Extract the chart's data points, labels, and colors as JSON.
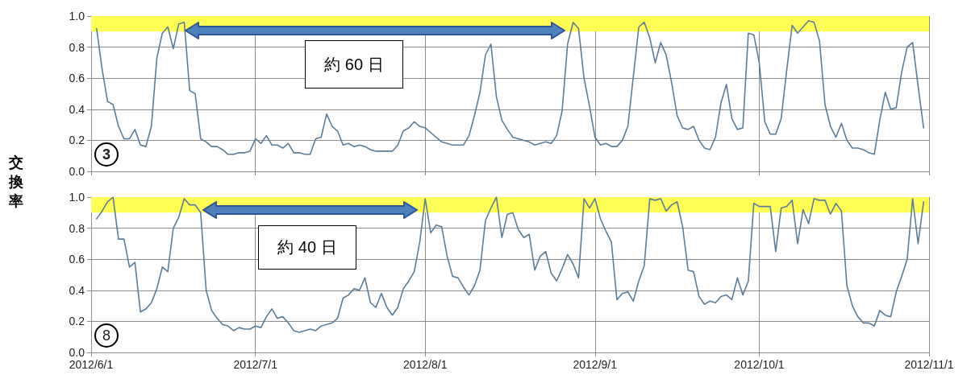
{
  "chart_data": [
    {
      "type": "line",
      "title": "3",
      "ylabel": "交換率",
      "annotations": [
        "約 60 日"
      ],
      "tick_labels": "y",
      "grid": true,
      "marker": "none",
      "line_style": "solid",
      "xlim": [
        "2012-06-01",
        "2012-11-01"
      ],
      "xticks": [
        {
          "value": "2012-06-01",
          "label": null
        },
        {
          "value": "2012-07-01",
          "label": null
        },
        {
          "value": "2012-08-01",
          "label": null
        },
        {
          "value": "2012-09-01",
          "label": null
        },
        {
          "value": "2012-10-01",
          "label": null
        },
        {
          "value": "2012-11-01",
          "label": null
        }
      ],
      "ylim": [
        0,
        1
      ],
      "yticks": [
        {
          "value": 0,
          "label": "0.0"
        },
        {
          "value": 0.2,
          "label": "0.2"
        },
        {
          "value": 0.4,
          "label": "0.4"
        },
        {
          "value": 0.6,
          "label": "0.6"
        },
        {
          "value": 0.8,
          "label": "0.8"
        },
        {
          "value": 1,
          "label": "1.0"
        }
      ],
      "bands": [
        {
          "axis": "y",
          "from": 0.9,
          "to": 1,
          "color": "#ffff55"
        }
      ],
      "x": [
        "2012-06-02",
        "2012-06-03",
        "2012-06-04",
        "2012-06-05",
        "2012-06-06",
        "2012-06-07",
        "2012-06-08",
        "2012-06-09",
        "2012-06-10",
        "2012-06-11",
        "2012-06-12",
        "2012-06-13",
        "2012-06-14",
        "2012-06-15",
        "2012-06-16",
        "2012-06-17",
        "2012-06-18",
        "2012-06-19",
        "2012-06-20",
        "2012-06-21",
        "2012-06-22",
        "2012-06-23",
        "2012-06-24",
        "2012-06-25",
        "2012-06-26",
        "2012-06-27",
        "2012-06-28",
        "2012-06-29",
        "2012-06-30",
        "2012-07-01",
        "2012-07-02",
        "2012-07-03",
        "2012-07-04",
        "2012-07-05",
        "2012-07-06",
        "2012-07-07",
        "2012-07-08",
        "2012-07-09",
        "2012-07-10",
        "2012-07-11",
        "2012-07-12",
        "2012-07-13",
        "2012-07-14",
        "2012-07-15",
        "2012-07-16",
        "2012-07-17",
        "2012-07-18",
        "2012-07-19",
        "2012-07-20",
        "2012-07-21",
        "2012-07-22",
        "2012-07-23",
        "2012-07-24",
        "2012-07-25",
        "2012-07-26",
        "2012-07-27",
        "2012-07-28",
        "2012-07-29",
        "2012-07-30",
        "2012-07-31",
        "2012-08-01",
        "2012-08-02",
        "2012-08-03",
        "2012-08-04",
        "2012-08-05",
        "2012-08-06",
        "2012-08-07",
        "2012-08-08",
        "2012-08-09",
        "2012-08-10",
        "2012-08-11",
        "2012-08-12",
        "2012-08-13",
        "2012-08-14",
        "2012-08-15",
        "2012-08-16",
        "2012-08-17",
        "2012-08-18",
        "2012-08-19",
        "2012-08-20",
        "2012-08-21",
        "2012-08-22",
        "2012-08-23",
        "2012-08-24",
        "2012-08-25",
        "2012-08-26",
        "2012-08-27",
        "2012-08-28",
        "2012-08-29",
        "2012-08-30",
        "2012-08-31",
        "2012-09-01",
        "2012-09-02",
        "2012-09-03",
        "2012-09-04",
        "2012-09-05",
        "2012-09-06",
        "2012-09-07",
        "2012-09-08",
        "2012-09-09",
        "2012-09-10",
        "2012-09-11",
        "2012-09-12",
        "2012-09-13",
        "2012-09-14",
        "2012-09-15",
        "2012-09-16",
        "2012-09-17",
        "2012-09-18",
        "2012-09-19",
        "2012-09-20",
        "2012-09-21",
        "2012-09-22",
        "2012-09-23",
        "2012-09-24",
        "2012-09-25",
        "2012-09-26",
        "2012-09-27",
        "2012-09-28",
        "2012-09-29",
        "2012-09-30",
        "2012-10-01",
        "2012-10-02",
        "2012-10-03",
        "2012-10-04",
        "2012-10-05",
        "2012-10-06",
        "2012-10-07",
        "2012-10-08",
        "2012-10-09",
        "2012-10-10",
        "2012-10-11",
        "2012-10-12",
        "2012-10-13",
        "2012-10-14",
        "2012-10-15",
        "2012-10-16",
        "2012-10-17",
        "2012-10-18",
        "2012-10-19",
        "2012-10-20",
        "2012-10-21",
        "2012-10-22",
        "2012-10-23",
        "2012-10-24",
        "2012-10-25",
        "2012-10-26",
        "2012-10-27",
        "2012-10-28",
        "2012-10-29",
        "2012-10-30",
        "2012-10-31"
      ],
      "series": [
        {
          "color": "#5b7d99",
          "values": [
            0.92,
            0.66,
            0.45,
            0.43,
            0.29,
            0.21,
            0.21,
            0.27,
            0.17,
            0.16,
            0.29,
            0.73,
            0.89,
            0.93,
            0.79,
            0.95,
            0.96,
            0.52,
            0.5,
            0.21,
            0.19,
            0.16,
            0.16,
            0.14,
            0.11,
            0.11,
            0.12,
            0.12,
            0.13,
            0.21,
            0.18,
            0.23,
            0.17,
            0.17,
            0.15,
            0.18,
            0.12,
            0.12,
            0.11,
            0.11,
            0.21,
            0.22,
            0.37,
            0.29,
            0.26,
            0.17,
            0.18,
            0.16,
            0.17,
            0.16,
            0.14,
            0.13,
            0.13,
            0.13,
            0.13,
            0.17,
            0.26,
            0.28,
            0.32,
            0.29,
            0.28,
            0.25,
            0.22,
            0.19,
            0.18,
            0.17,
            0.17,
            0.17,
            0.23,
            0.36,
            0.51,
            0.75,
            0.82,
            0.48,
            0.33,
            0.27,
            0.22,
            0.21,
            0.2,
            0.19,
            0.17,
            0.18,
            0.19,
            0.18,
            0.23,
            0.39,
            0.82,
            0.96,
            0.92,
            0.6,
            0.42,
            0.22,
            0.17,
            0.18,
            0.16,
            0.16,
            0.2,
            0.29,
            0.61,
            0.93,
            0.96,
            0.86,
            0.7,
            0.83,
            0.75,
            0.57,
            0.36,
            0.28,
            0.27,
            0.29,
            0.2,
            0.15,
            0.14,
            0.22,
            0.44,
            0.56,
            0.34,
            0.27,
            0.28,
            0.89,
            0.88,
            0.7,
            0.32,
            0.24,
            0.24,
            0.34,
            0.65,
            0.94,
            0.89,
            0.93,
            0.97,
            0.96,
            0.84,
            0.43,
            0.29,
            0.22,
            0.31,
            0.2,
            0.15,
            0.15,
            0.14,
            0.12,
            0.11,
            0.33,
            0.51,
            0.4,
            0.41,
            0.64,
            0.8,
            0.83,
            0.55,
            0.28
          ]
        }
      ]
    },
    {
      "type": "line",
      "title": "8",
      "annotations": [
        "約 40 日"
      ],
      "grid": true,
      "marker": "none",
      "line_style": "solid",
      "xlim": [
        "2012-06-01",
        "2012-11-01"
      ],
      "xticks": [
        {
          "value": "2012-06-01",
          "label": "2012/6/1"
        },
        {
          "value": "2012-07-01",
          "label": "2012/7/1"
        },
        {
          "value": "2012-08-01",
          "label": "2012/8/1"
        },
        {
          "value": "2012-09-01",
          "label": "2012/9/1"
        },
        {
          "value": "2012-10-01",
          "label": "2012/10/1"
        },
        {
          "value": "2012-11-01",
          "label": "2012/11/1"
        }
      ],
      "ylim": [
        0,
        1
      ],
      "yticks": [
        {
          "value": 0,
          "label": "0.0"
        },
        {
          "value": 0.2,
          "label": "0.2"
        },
        {
          "value": 0.4,
          "label": "0.4"
        },
        {
          "value": 0.6,
          "label": "0.6"
        },
        {
          "value": 0.8,
          "label": "0.8"
        },
        {
          "value": 1,
          "label": "1.0"
        }
      ],
      "bands": [
        {
          "axis": "y",
          "from": 0.9,
          "to": 1,
          "color": "#ffff55"
        }
      ],
      "x": [
        "2012-06-02",
        "2012-06-03",
        "2012-06-04",
        "2012-06-05",
        "2012-06-06",
        "2012-06-07",
        "2012-06-08",
        "2012-06-09",
        "2012-06-10",
        "2012-06-11",
        "2012-06-12",
        "2012-06-13",
        "2012-06-14",
        "2012-06-15",
        "2012-06-16",
        "2012-06-17",
        "2012-06-18",
        "2012-06-19",
        "2012-06-20",
        "2012-06-21",
        "2012-06-22",
        "2012-06-23",
        "2012-06-24",
        "2012-06-25",
        "2012-06-26",
        "2012-06-27",
        "2012-06-28",
        "2012-06-29",
        "2012-06-30",
        "2012-07-01",
        "2012-07-02",
        "2012-07-03",
        "2012-07-04",
        "2012-07-05",
        "2012-07-06",
        "2012-07-07",
        "2012-07-08",
        "2012-07-09",
        "2012-07-10",
        "2012-07-11",
        "2012-07-12",
        "2012-07-13",
        "2012-07-14",
        "2012-07-15",
        "2012-07-16",
        "2012-07-17",
        "2012-07-18",
        "2012-07-19",
        "2012-07-20",
        "2012-07-21",
        "2012-07-22",
        "2012-07-23",
        "2012-07-24",
        "2012-07-25",
        "2012-07-26",
        "2012-07-27",
        "2012-07-28",
        "2012-07-29",
        "2012-07-30",
        "2012-07-31",
        "2012-08-01",
        "2012-08-02",
        "2012-08-03",
        "2012-08-04",
        "2012-08-05",
        "2012-08-06",
        "2012-08-07",
        "2012-08-08",
        "2012-08-09",
        "2012-08-10",
        "2012-08-11",
        "2012-08-12",
        "2012-08-13",
        "2012-08-14",
        "2012-08-15",
        "2012-08-16",
        "2012-08-17",
        "2012-08-18",
        "2012-08-19",
        "2012-08-20",
        "2012-08-21",
        "2012-08-22",
        "2012-08-23",
        "2012-08-24",
        "2012-08-25",
        "2012-08-26",
        "2012-08-27",
        "2012-08-28",
        "2012-08-29",
        "2012-08-30",
        "2012-08-31",
        "2012-09-01",
        "2012-09-02",
        "2012-09-03",
        "2012-09-04",
        "2012-09-05",
        "2012-09-06",
        "2012-09-07",
        "2012-09-08",
        "2012-09-09",
        "2012-09-10",
        "2012-09-11",
        "2012-09-12",
        "2012-09-13",
        "2012-09-14",
        "2012-09-15",
        "2012-09-16",
        "2012-09-17",
        "2012-09-18",
        "2012-09-19",
        "2012-09-20",
        "2012-09-21",
        "2012-09-22",
        "2012-09-23",
        "2012-09-24",
        "2012-09-25",
        "2012-09-26",
        "2012-09-27",
        "2012-09-28",
        "2012-09-29",
        "2012-09-30",
        "2012-10-01",
        "2012-10-02",
        "2012-10-03",
        "2012-10-04",
        "2012-10-05",
        "2012-10-06",
        "2012-10-07",
        "2012-10-08",
        "2012-10-09",
        "2012-10-10",
        "2012-10-11",
        "2012-10-12",
        "2012-10-13",
        "2012-10-14",
        "2012-10-15",
        "2012-10-16",
        "2012-10-17",
        "2012-10-18",
        "2012-10-19",
        "2012-10-20",
        "2012-10-21",
        "2012-10-22",
        "2012-10-23",
        "2012-10-24",
        "2012-10-25",
        "2012-10-26",
        "2012-10-27",
        "2012-10-28",
        "2012-10-29",
        "2012-10-30",
        "2012-10-31"
      ],
      "series": [
        {
          "color": "#5b7d99",
          "values": [
            0.86,
            0.91,
            0.97,
            1.0,
            0.73,
            0.73,
            0.55,
            0.58,
            0.26,
            0.28,
            0.32,
            0.41,
            0.55,
            0.52,
            0.8,
            0.87,
            0.99,
            0.95,
            0.95,
            0.9,
            0.4,
            0.27,
            0.22,
            0.18,
            0.17,
            0.14,
            0.16,
            0.15,
            0.15,
            0.17,
            0.16,
            0.23,
            0.28,
            0.22,
            0.23,
            0.19,
            0.14,
            0.13,
            0.14,
            0.15,
            0.14,
            0.17,
            0.18,
            0.19,
            0.22,
            0.35,
            0.37,
            0.41,
            0.4,
            0.48,
            0.32,
            0.29,
            0.38,
            0.29,
            0.24,
            0.29,
            0.41,
            0.46,
            0.52,
            0.71,
            0.99,
            0.77,
            0.82,
            0.81,
            0.62,
            0.49,
            0.48,
            0.42,
            0.37,
            0.43,
            0.53,
            0.85,
            0.93,
            1.0,
            0.74,
            0.89,
            0.9,
            0.79,
            0.74,
            0.76,
            0.53,
            0.62,
            0.65,
            0.51,
            0.46,
            0.54,
            0.63,
            0.57,
            0.48,
            0.99,
            0.93,
            0.99,
            0.86,
            0.78,
            0.71,
            0.34,
            0.38,
            0.39,
            0.33,
            0.46,
            0.56,
            0.99,
            0.98,
            0.99,
            0.91,
            0.95,
            0.97,
            0.81,
            0.53,
            0.52,
            0.36,
            0.31,
            0.33,
            0.32,
            0.36,
            0.37,
            0.34,
            0.48,
            0.37,
            0.46,
            0.96,
            0.94,
            0.94,
            0.94,
            0.65,
            0.93,
            0.94,
            0.98,
            0.7,
            0.92,
            0.83,
            0.99,
            0.98,
            0.98,
            0.89,
            0.96,
            0.91,
            0.43,
            0.3,
            0.23,
            0.19,
            0.19,
            0.17,
            0.27,
            0.24,
            0.23,
            0.39,
            0.49,
            0.6,
            0.99,
            0.7,
            0.97
          ]
        }
      ]
    }
  ]
}
